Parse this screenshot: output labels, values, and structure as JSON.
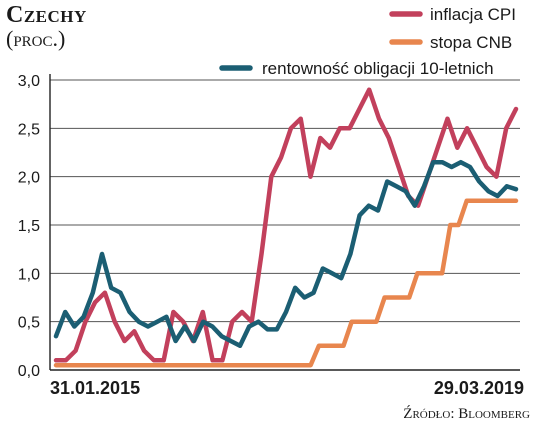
{
  "title": "Czechy",
  "subtitle": "(proc.)",
  "source": "Źródło: Bloomberg",
  "chart_data": {
    "type": "line",
    "ylim": [
      0,
      3.0
    ],
    "yticks": [
      "3,0",
      "2,5",
      "2,0",
      "1,5",
      "1,0",
      "0,5",
      "0,0"
    ],
    "ytick_values": [
      3.0,
      2.5,
      2.0,
      1.5,
      1.0,
      0.5,
      0.0
    ],
    "grid": true,
    "legend_position": "top-right",
    "x_labels": [
      "31.01.2015",
      "29.03.2019"
    ],
    "series": [
      {
        "name": "inflacja CPI",
        "color": "#c2405c",
        "values": [
          0.1,
          0.1,
          0.2,
          0.5,
          0.7,
          0.8,
          0.5,
          0.3,
          0.4,
          0.2,
          0.1,
          0.1,
          0.6,
          0.5,
          0.3,
          0.6,
          0.1,
          0.1,
          0.5,
          0.6,
          0.5,
          1.2,
          2.0,
          2.2,
          2.5,
          2.6,
          2.0,
          2.4,
          2.3,
          2.5,
          2.5,
          2.7,
          2.9,
          2.6,
          2.4,
          2.1,
          1.8,
          1.7,
          2.0,
          2.3,
          2.6,
          2.3,
          2.5,
          2.3,
          2.1,
          2.0,
          2.5,
          2.7
        ]
      },
      {
        "name": "stopa CNB",
        "color": "#e8864e",
        "values": [
          0.05,
          0.05,
          0.05,
          0.05,
          0.05,
          0.05,
          0.05,
          0.05,
          0.05,
          0.05,
          0.05,
          0.05,
          0.05,
          0.05,
          0.05,
          0.05,
          0.05,
          0.05,
          0.05,
          0.05,
          0.05,
          0.05,
          0.05,
          0.05,
          0.05,
          0.05,
          0.05,
          0.05,
          0.05,
          0.05,
          0.05,
          0.05,
          0.25,
          0.25,
          0.25,
          0.25,
          0.5,
          0.5,
          0.5,
          0.5,
          0.75,
          0.75,
          0.75,
          0.75,
          1.0,
          1.0,
          1.0,
          1.0,
          1.5,
          1.5,
          1.75,
          1.75,
          1.75,
          1.75,
          1.75,
          1.75,
          1.75
        ]
      },
      {
        "name": "rentowność obligacji 10-letnich",
        "color": "#1b5e73",
        "values": [
          0.35,
          0.6,
          0.45,
          0.55,
          0.8,
          1.2,
          0.85,
          0.8,
          0.6,
          0.5,
          0.45,
          0.5,
          0.55,
          0.3,
          0.45,
          0.3,
          0.5,
          0.45,
          0.35,
          0.3,
          0.25,
          0.45,
          0.5,
          0.42,
          0.42,
          0.6,
          0.85,
          0.75,
          0.8,
          1.05,
          1.0,
          0.95,
          1.2,
          1.6,
          1.7,
          1.65,
          1.95,
          1.9,
          1.85,
          1.7,
          1.9,
          2.15,
          2.15,
          2.1,
          2.15,
          2.1,
          1.95,
          1.85,
          1.8,
          1.9,
          1.87
        ]
      }
    ]
  }
}
